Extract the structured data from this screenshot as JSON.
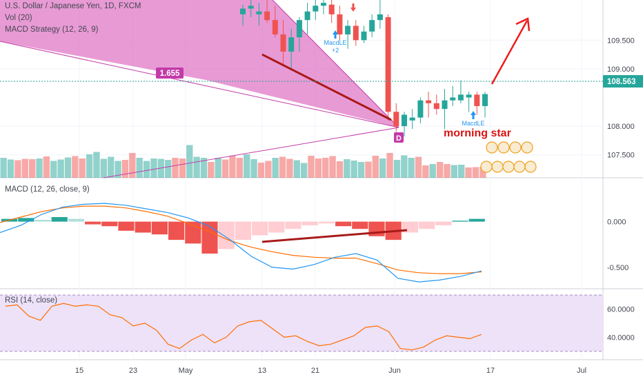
{
  "legend": {
    "title": "U.S. Dollar / Japanese Yen, 1D, FXCM",
    "vol": "Vol (20)",
    "strategy": "MACD Strategy (12, 26, 9)",
    "macd": "MACD (12, 26, close, 9)",
    "rsi": "RSI (14, close)"
  },
  "annotations": {
    "pattern_value": "1.655",
    "point_label": "D",
    "pattern_text": "morning star",
    "signal_1": "MacdLE",
    "signal_1_sub": "+2",
    "signal_2": "MacdLE",
    "last_price": "108.563"
  },
  "colors": {
    "up": "#26a69a",
    "down": "#ef5350",
    "pattern_fill": "#e078c6",
    "pattern_stroke": "#c23ba8",
    "trendline": "#a81a1a",
    "arrow": "#ee1c1c",
    "macd_line": "#2196f3",
    "signal_line": "#ff6d00",
    "rsi_line": "#ff6d00",
    "rsi_band": "#ede2f8"
  },
  "chart_data": [
    {
      "type": "candlestick",
      "title": "U.S. Dollar / Japanese Yen, 1D, FXCM",
      "ylim": [
        107.1,
        110.2
      ],
      "y_ticks": [
        "109.500",
        "109.000",
        "108.000",
        "107.500"
      ],
      "x_ticks": [
        "15",
        "23",
        "May",
        "13",
        "21",
        "Jun",
        "17",
        "Jul"
      ],
      "last_value": 108.563,
      "candles": [
        {
          "o": 109.95,
          "h": 110.12,
          "l": 109.75,
          "c": 110.05
        },
        {
          "o": 110.05,
          "h": 110.2,
          "l": 109.9,
          "c": 110.1
        },
        {
          "o": 109.95,
          "h": 110.15,
          "l": 109.75,
          "c": 110.0
        },
        {
          "o": 110.0,
          "h": 110.2,
          "l": 109.8,
          "c": 109.85
        },
        {
          "o": 109.85,
          "h": 110.1,
          "l": 109.55,
          "c": 109.6
        },
        {
          "o": 109.6,
          "h": 109.85,
          "l": 109.05,
          "c": 109.3
        },
        {
          "o": 109.3,
          "h": 109.7,
          "l": 109.0,
          "c": 109.55
        },
        {
          "o": 109.55,
          "h": 109.9,
          "l": 109.3,
          "c": 109.85
        },
        {
          "o": 109.85,
          "h": 110.15,
          "l": 109.6,
          "c": 110.0
        },
        {
          "o": 110.0,
          "h": 110.2,
          "l": 109.85,
          "c": 110.1
        },
        {
          "o": 110.1,
          "h": 110.2,
          "l": 109.95,
          "c": 110.15
        },
        {
          "o": 110.12,
          "h": 110.2,
          "l": 109.8,
          "c": 109.95
        },
        {
          "o": 109.95,
          "h": 110.1,
          "l": 109.5,
          "c": 109.6
        },
        {
          "o": 109.6,
          "h": 109.85,
          "l": 109.35,
          "c": 109.75
        },
        {
          "o": 109.75,
          "h": 109.85,
          "l": 109.4,
          "c": 109.5
        },
        {
          "o": 109.5,
          "h": 109.75,
          "l": 109.45,
          "c": 109.65
        },
        {
          "o": 109.65,
          "h": 109.95,
          "l": 109.55,
          "c": 109.85
        },
        {
          "o": 109.85,
          "h": 110.2,
          "l": 109.7,
          "c": 109.95
        },
        {
          "o": 109.9,
          "h": 109.95,
          "l": 108.1,
          "c": 108.25
        },
        {
          "o": 108.25,
          "h": 108.4,
          "l": 107.9,
          "c": 108.0
        },
        {
          "o": 108.0,
          "h": 108.25,
          "l": 107.82,
          "c": 108.2
        },
        {
          "o": 108.1,
          "h": 108.3,
          "l": 107.95,
          "c": 108.15
        },
        {
          "o": 108.15,
          "h": 108.5,
          "l": 108.05,
          "c": 108.45
        },
        {
          "o": 108.45,
          "h": 108.6,
          "l": 108.15,
          "c": 108.4
        },
        {
          "o": 108.4,
          "h": 108.55,
          "l": 108.2,
          "c": 108.3
        },
        {
          "o": 108.3,
          "h": 108.65,
          "l": 107.95,
          "c": 108.45
        },
        {
          "o": 108.45,
          "h": 108.7,
          "l": 108.35,
          "c": 108.5
        },
        {
          "o": 108.45,
          "h": 108.8,
          "l": 108.4,
          "c": 108.55
        },
        {
          "o": 108.5,
          "h": 108.6,
          "l": 108.25,
          "c": 108.55
        },
        {
          "o": 108.55,
          "h": 108.6,
          "l": 108.2,
          "c": 108.35
        },
        {
          "o": 108.35,
          "h": 108.6,
          "l": 108.15,
          "c": 108.56
        }
      ],
      "volume": [
        58,
        53,
        51,
        55,
        54,
        56,
        62,
        49,
        53,
        59,
        63,
        56,
        68,
        75,
        55,
        61,
        49,
        52,
        72,
        58,
        49,
        56,
        55,
        52,
        58,
        56,
        95,
        61,
        58,
        46,
        58,
        53,
        64,
        58,
        68,
        54,
        44,
        49,
        58,
        61,
        55,
        51,
        43,
        64,
        56,
        58,
        63,
        48,
        54,
        50,
        46,
        47,
        64,
        56,
        72,
        52,
        65,
        58,
        61,
        36,
        40,
        46,
        40,
        37,
        38,
        30,
        31,
        32
      ]
    },
    {
      "type": "line",
      "title": "MACD (12, 26, close, 9)",
      "ylim": [
        -0.72,
        0.45
      ],
      "y_ticks": [
        "0.000",
        "-0.500"
      ],
      "macd": [
        -0.12,
        -0.04,
        0.08,
        0.16,
        0.19,
        0.2,
        0.18,
        0.14,
        0.1,
        0.04,
        -0.05,
        -0.2,
        -0.38,
        -0.5,
        -0.52,
        -0.47,
        -0.39,
        -0.35,
        -0.42,
        -0.62,
        -0.66,
        -0.64,
        -0.6,
        -0.54
      ],
      "signal": [
        -0.01,
        0.05,
        0.11,
        0.15,
        0.17,
        0.17,
        0.15,
        0.11,
        0.06,
        -0.02,
        -0.11,
        -0.21,
        -0.28,
        -0.33,
        -0.37,
        -0.39,
        -0.4,
        -0.4,
        -0.46,
        -0.53,
        -0.56,
        -0.57,
        -0.57,
        -0.55
      ],
      "histogram": [
        0.03,
        0.04,
        0.02,
        0.05,
        0.03,
        -0.03,
        -0.05,
        -0.1,
        -0.12,
        -0.14,
        -0.2,
        -0.24,
        -0.35,
        -0.3,
        -0.2,
        -0.15,
        -0.12,
        -0.08,
        -0.04,
        -0.02,
        -0.05,
        -0.08,
        -0.16,
        -0.2,
        -0.12,
        -0.08,
        -0.04,
        0.01,
        0.03
      ]
    },
    {
      "type": "line",
      "title": "RSI (14, close)",
      "ylim": [
        26,
        72
      ],
      "band": [
        30,
        70
      ],
      "y_ticks": [
        "60.0000",
        "40.0000"
      ],
      "values": [
        62,
        63,
        55,
        52,
        62,
        64,
        62,
        63,
        62,
        56,
        54,
        48,
        50,
        45,
        35,
        32,
        38,
        42,
        36,
        40,
        48,
        51,
        52,
        46,
        40,
        41,
        37,
        34,
        35,
        38,
        41,
        47,
        48,
        44,
        32,
        31,
        33,
        38,
        41,
        40,
        39,
        42
      ]
    }
  ]
}
